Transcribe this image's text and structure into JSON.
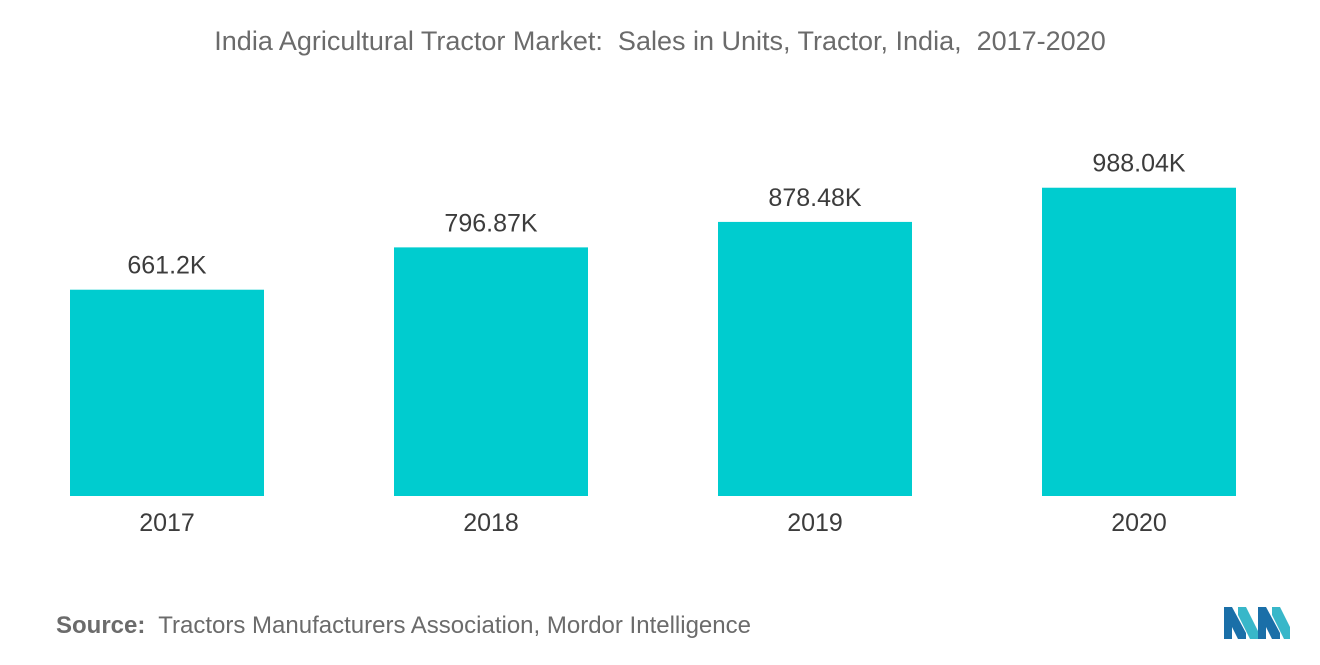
{
  "chart_data": {
    "type": "bar",
    "title": "India Agricultural Tractor Market:  Sales in Units, Tractor, India,  2017-2020",
    "categories": [
      "2017",
      "2018",
      "2019",
      "2020"
    ],
    "values": [
      661.2,
      796.87,
      878.48,
      988.04
    ],
    "data_labels": [
      "661.2K",
      "796.87K",
      "878.48K",
      "988.04K"
    ],
    "unit": "K",
    "xlabel": "",
    "ylabel": "",
    "ylim": [
      0,
      1000
    ],
    "grid": false,
    "legend": "none",
    "bar_color": "#00cccf"
  },
  "source": {
    "label": "Source:",
    "text": "Tractors Manufacturers Association, Mordor Intelligence"
  },
  "logo": {
    "icon": "mordor-intelligence-logo-icon",
    "colors": [
      "#1a6fa8",
      "#38b7c9"
    ]
  }
}
